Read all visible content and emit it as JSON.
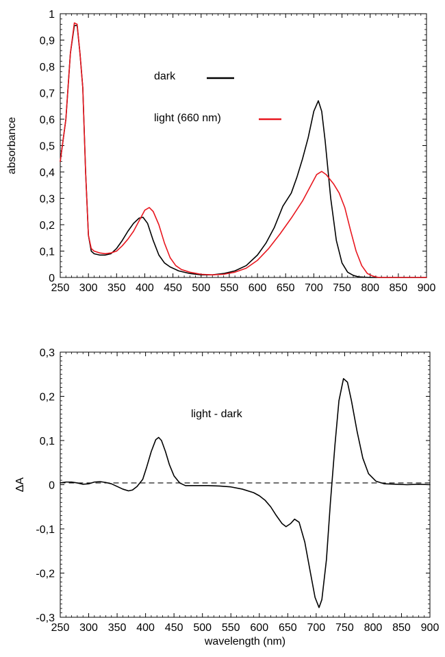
{
  "chart_data": [
    {
      "type": "line",
      "title": "",
      "xlabel": "",
      "ylabel": "absorbance",
      "xlim": [
        250,
        900
      ],
      "ylim": [
        0,
        1
      ],
      "x_ticks": [
        "250",
        "300",
        "350",
        "400",
        "450",
        "500",
        "550",
        "600",
        "650",
        "700",
        "750",
        "800",
        "850",
        "900"
      ],
      "y_ticks": [
        "0",
        "0,1",
        "0,2",
        "0,3",
        "0,4",
        "0,5",
        "0,6",
        "0,7",
        "0,8",
        "0,9",
        "1"
      ],
      "grid": false,
      "legend_position": "inside-upper-center",
      "series": [
        {
          "name": "dark",
          "color": "#000000",
          "points": [
            [
              250,
              0.44
            ],
            [
              260,
              0.6
            ],
            [
              268,
              0.85
            ],
            [
              275,
              0.955
            ],
            [
              280,
              0.955
            ],
            [
              285,
              0.85
            ],
            [
              290,
              0.72
            ],
            [
              295,
              0.4
            ],
            [
              300,
              0.16
            ],
            [
              305,
              0.1
            ],
            [
              310,
              0.09
            ],
            [
              320,
              0.085
            ],
            [
              330,
              0.085
            ],
            [
              340,
              0.09
            ],
            [
              350,
              0.11
            ],
            [
              360,
              0.14
            ],
            [
              370,
              0.175
            ],
            [
              380,
              0.205
            ],
            [
              390,
              0.225
            ],
            [
              397,
              0.228
            ],
            [
              405,
              0.205
            ],
            [
              415,
              0.14
            ],
            [
              425,
              0.085
            ],
            [
              435,
              0.055
            ],
            [
              445,
              0.04
            ],
            [
              460,
              0.025
            ],
            [
              480,
              0.015
            ],
            [
              500,
              0.01
            ],
            [
              520,
              0.01
            ],
            [
              540,
              0.015
            ],
            [
              560,
              0.025
            ],
            [
              580,
              0.045
            ],
            [
              600,
              0.085
            ],
            [
              615,
              0.13
            ],
            [
              630,
              0.19
            ],
            [
              645,
              0.27
            ],
            [
              660,
              0.32
            ],
            [
              670,
              0.38
            ],
            [
              680,
              0.45
            ],
            [
              690,
              0.53
            ],
            [
              700,
              0.63
            ],
            [
              708,
              0.67
            ],
            [
              714,
              0.63
            ],
            [
              720,
              0.52
            ],
            [
              730,
              0.3
            ],
            [
              740,
              0.14
            ],
            [
              750,
              0.055
            ],
            [
              760,
              0.02
            ],
            [
              770,
              0.008
            ],
            [
              780,
              0.002
            ],
            [
              800,
              0
            ],
            [
              850,
              0
            ],
            [
              900,
              0
            ]
          ]
        },
        {
          "name": "light (660 nm)",
          "color": "#e8161e",
          "points": [
            [
              250,
              0.44
            ],
            [
              260,
              0.6
            ],
            [
              268,
              0.85
            ],
            [
              275,
              0.965
            ],
            [
              280,
              0.96
            ],
            [
              285,
              0.85
            ],
            [
              290,
              0.72
            ],
            [
              295,
              0.4
            ],
            [
              300,
              0.16
            ],
            [
              305,
              0.11
            ],
            [
              310,
              0.1
            ],
            [
              320,
              0.093
            ],
            [
              330,
              0.09
            ],
            [
              340,
              0.093
            ],
            [
              350,
              0.1
            ],
            [
              360,
              0.12
            ],
            [
              370,
              0.145
            ],
            [
              380,
              0.175
            ],
            [
              390,
              0.215
            ],
            [
              400,
              0.255
            ],
            [
              408,
              0.265
            ],
            [
              415,
              0.25
            ],
            [
              425,
              0.2
            ],
            [
              435,
              0.13
            ],
            [
              445,
              0.075
            ],
            [
              455,
              0.045
            ],
            [
              465,
              0.03
            ],
            [
              480,
              0.02
            ],
            [
              500,
              0.012
            ],
            [
              520,
              0.01
            ],
            [
              540,
              0.012
            ],
            [
              560,
              0.02
            ],
            [
              580,
              0.035
            ],
            [
              600,
              0.065
            ],
            [
              620,
              0.11
            ],
            [
              640,
              0.165
            ],
            [
              660,
              0.225
            ],
            [
              680,
              0.29
            ],
            [
              695,
              0.35
            ],
            [
              705,
              0.39
            ],
            [
              714,
              0.402
            ],
            [
              722,
              0.39
            ],
            [
              735,
              0.355
            ],
            [
              745,
              0.32
            ],
            [
              755,
              0.265
            ],
            [
              765,
              0.18
            ],
            [
              775,
              0.1
            ],
            [
              785,
              0.045
            ],
            [
              795,
              0.015
            ],
            [
              805,
              0.005
            ],
            [
              815,
              0
            ],
            [
              850,
              0
            ],
            [
              900,
              0
            ]
          ]
        }
      ]
    },
    {
      "type": "line",
      "title": "",
      "xlabel": "wavelength (nm)",
      "ylabel": "ΔA",
      "xlim": [
        250,
        900
      ],
      "ylim": [
        -0.3,
        0.3
      ],
      "x_ticks": [
        "250",
        "300",
        "350",
        "400",
        "450",
        "500",
        "550",
        "600",
        "650",
        "700",
        "750",
        "800",
        "850",
        "900"
      ],
      "y_ticks": [
        "-0,3",
        "-0,2",
        "-0,1",
        "0",
        "0,1",
        "0,2",
        "0,3"
      ],
      "grid": false,
      "annotation": "light - dark",
      "baseline": 0,
      "series": [
        {
          "name": "light - dark",
          "color": "#000000",
          "points": [
            [
              250,
              0.004
            ],
            [
              260,
              0.006
            ],
            [
              270,
              0.006
            ],
            [
              280,
              0.004
            ],
            [
              290,
              0.001
            ],
            [
              300,
              0.002
            ],
            [
              310,
              0.006
            ],
            [
              320,
              0.007
            ],
            [
              330,
              0.005
            ],
            [
              340,
              0.002
            ],
            [
              350,
              -0.004
            ],
            [
              360,
              -0.01
            ],
            [
              370,
              -0.014
            ],
            [
              377,
              -0.012
            ],
            [
              385,
              -0.004
            ],
            [
              395,
              0.012
            ],
            [
              402,
              0.04
            ],
            [
              410,
              0.075
            ],
            [
              418,
              0.102
            ],
            [
              423,
              0.107
            ],
            [
              428,
              0.1
            ],
            [
              435,
              0.075
            ],
            [
              442,
              0.045
            ],
            [
              450,
              0.02
            ],
            [
              460,
              0.004
            ],
            [
              470,
              -0.002
            ],
            [
              490,
              -0.002
            ],
            [
              510,
              -0.002
            ],
            [
              530,
              -0.003
            ],
            [
              550,
              -0.005
            ],
            [
              570,
              -0.01
            ],
            [
              590,
              -0.018
            ],
            [
              600,
              -0.025
            ],
            [
              610,
              -0.035
            ],
            [
              620,
              -0.05
            ],
            [
              630,
              -0.07
            ],
            [
              640,
              -0.088
            ],
            [
              647,
              -0.095
            ],
            [
              655,
              -0.088
            ],
            [
              662,
              -0.078
            ],
            [
              670,
              -0.085
            ],
            [
              680,
              -0.13
            ],
            [
              690,
              -0.2
            ],
            [
              698,
              -0.255
            ],
            [
              705,
              -0.278
            ],
            [
              710,
              -0.26
            ],
            [
              718,
              -0.17
            ],
            [
              725,
              -0.04
            ],
            [
              733,
              0.09
            ],
            [
              740,
              0.19
            ],
            [
              748,
              0.24
            ],
            [
              755,
              0.232
            ],
            [
              762,
              0.19
            ],
            [
              772,
              0.12
            ],
            [
              782,
              0.06
            ],
            [
              792,
              0.025
            ],
            [
              805,
              0.008
            ],
            [
              820,
              0.002
            ],
            [
              840,
              0.001
            ],
            [
              860,
              0
            ],
            [
              880,
              0.001
            ],
            [
              900,
              0
            ]
          ]
        },
        {
          "name": "",
          "color": "#000000",
          "style": "dashed",
          "points": [
            [
              250,
              0.004
            ],
            [
              900,
              0.004
            ]
          ]
        }
      ]
    }
  ]
}
